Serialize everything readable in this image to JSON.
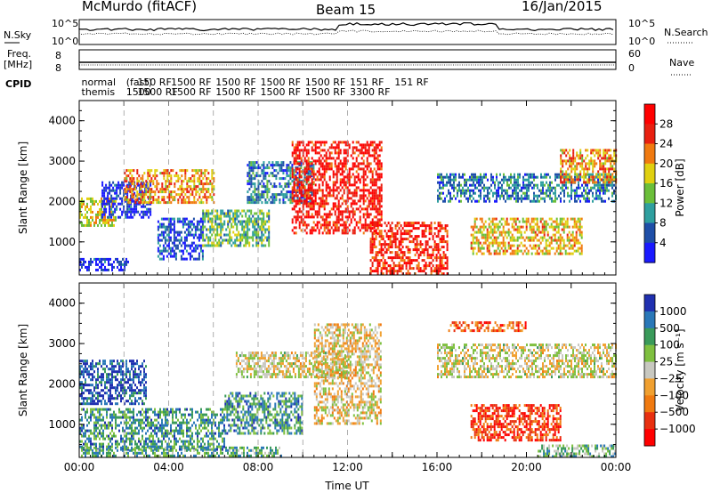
{
  "header": {
    "station": "McMurdo (fitACF)",
    "beam": "Beam 15",
    "date": "16/Jan/2015"
  },
  "side_labels": {
    "nsky": "N.Sky",
    "nsky_top": "10^5",
    "nsky_bottom": "10^0",
    "freq": "Freq.",
    "freq_unit": "[MHz]",
    "freq_top": "8",
    "freq_bottom": "8",
    "cpid": "CPID",
    "nsearch": "N.Search",
    "nsearch_top": "10^5",
    "nsearch_bottom": "10^0",
    "nave": "Nave",
    "nave_top": "60",
    "nave_bottom": "0"
  },
  "cpid_labels": [
    {
      "t": 0.1,
      "row1": "normal",
      "row2": "themis"
    },
    {
      "t": 2.1,
      "row1": "(fast)",
      "row2": "1500"
    },
    {
      "t": 2.6,
      "row1": "150 RF",
      "row2": "1500 RF"
    },
    {
      "t": 4.1,
      "row1": "1500 RF",
      "row2": "1500 RF"
    },
    {
      "t": 6.1,
      "row1": "1500 RF",
      "row2": "1500 RF"
    },
    {
      "t": 8.1,
      "row1": "1500 RF",
      "row2": "1500 RF"
    },
    {
      "t": 10.1,
      "row1": "1500 RF",
      "row2": "1500 RF"
    },
    {
      "t": 12.1,
      "row1": "151 RF",
      "row2": "3300 RF"
    },
    {
      "t": 14.1,
      "row1": "151 RF",
      "row2": ""
    }
  ],
  "chart_data": [
    {
      "type": "heatmap",
      "name": "power",
      "ylabel": "Slant Range [km]",
      "xlim": [
        0,
        24
      ],
      "ylim": [
        180,
        4500
      ],
      "yticks": [
        "1000",
        "2000",
        "3000",
        "4000"
      ],
      "yticks_values": [
        1000,
        2000,
        3000,
        4000
      ],
      "colorbar_label": "Power [dB]",
      "colorbar_ticks": [
        "4",
        "8",
        "12",
        "16",
        "20",
        "24",
        "28"
      ],
      "colorbar_colors": [
        "#1a1aff",
        "#1f4fa8",
        "#2f9f9f",
        "#6bbf3a",
        "#e0d010",
        "#f07a10",
        "#e82010",
        "#ff0000"
      ],
      "regions": [
        {
          "t0": 0.0,
          "t1": 2.2,
          "r0": 300,
          "r1": 600,
          "level": 0.9
        },
        {
          "t0": 0.0,
          "t1": 1.6,
          "r0": 1400,
          "r1": 2100,
          "level": 0.45
        },
        {
          "t0": 1.0,
          "t1": 3.2,
          "r0": 1600,
          "r1": 2500,
          "level": 0.9
        },
        {
          "t0": 3.5,
          "t1": 5.5,
          "r0": 600,
          "r1": 1600,
          "level": 0.85
        },
        {
          "t0": 5.5,
          "t1": 8.5,
          "r0": 900,
          "r1": 1800,
          "level": 0.6
        },
        {
          "t0": 7.5,
          "t1": 10.5,
          "r0": 2000,
          "r1": 3000,
          "level": 0.75
        },
        {
          "t0": 2.0,
          "t1": 6.0,
          "r0": 2000,
          "r1": 2800,
          "level": 0.35
        },
        {
          "t0": 9.5,
          "t1": 13.5,
          "r0": 1200,
          "r1": 3500,
          "level": 0.12
        },
        {
          "t0": 13.0,
          "t1": 16.5,
          "r0": 200,
          "r1": 1500,
          "level": 0.15
        },
        {
          "t0": 16.0,
          "t1": 24.0,
          "r0": 2000,
          "r1": 2700,
          "level": 0.75
        },
        {
          "t0": 17.5,
          "t1": 22.5,
          "r0": 700,
          "r1": 1600,
          "level": 0.4
        },
        {
          "t0": 21.5,
          "t1": 24.0,
          "r0": 2500,
          "r1": 3300,
          "level": 0.35
        }
      ]
    },
    {
      "type": "heatmap",
      "name": "velocity",
      "ylabel": "Slant Range [km]",
      "xlabel": "Time UT",
      "xlim": [
        0,
        24
      ],
      "ylim": [
        180,
        4500
      ],
      "xticks": [
        "00:00",
        "04:00",
        "08:00",
        "12:00",
        "16:00",
        "20:00",
        "00:00"
      ],
      "xticks_values": [
        0,
        4,
        8,
        12,
        16,
        20,
        24
      ],
      "yticks": [
        "1000",
        "2000",
        "3000",
        "4000"
      ],
      "yticks_values": [
        1000,
        2000,
        3000,
        4000
      ],
      "colorbar_label": "Velocity [m s⁻¹]",
      "colorbar_ticks": [
        "1000",
        "500",
        "100",
        "25",
        "−25",
        "−100",
        "−500",
        "−1000"
      ],
      "colorbar_colors": [
        "#2030b0",
        "#2a78b8",
        "#3a9a5a",
        "#7fc040",
        "#c8c8c0",
        "#f0a030",
        "#f07a10",
        "#e83010",
        "#ff0000"
      ],
      "regions": [
        {
          "t0": 0.0,
          "t1": 3.0,
          "r0": 1500,
          "r1": 2600,
          "level": 0.1
        },
        {
          "t0": 0.0,
          "t1": 6.5,
          "r0": 400,
          "r1": 1400,
          "level": 0.25
        },
        {
          "t0": 6.5,
          "t1": 10.0,
          "r0": 800,
          "r1": 1800,
          "level": 0.25
        },
        {
          "t0": 0.0,
          "t1": 9.0,
          "r0": 200,
          "r1": 450,
          "level": 0.3
        },
        {
          "t0": 7.0,
          "t1": 12.0,
          "r0": 2200,
          "r1": 2800,
          "level": 0.5
        },
        {
          "t0": 10.5,
          "t1": 13.5,
          "r0": 1000,
          "r1": 3500,
          "level": 0.55
        },
        {
          "t0": 16.0,
          "t1": 24.0,
          "r0": 2200,
          "r1": 3000,
          "level": 0.5
        },
        {
          "t0": 17.5,
          "t1": 21.5,
          "r0": 600,
          "r1": 1500,
          "level": 0.85
        },
        {
          "t0": 16.5,
          "t1": 20.0,
          "r0": 3300,
          "r1": 3550,
          "level": 0.78
        },
        {
          "t0": 20.5,
          "t1": 24.0,
          "r0": 200,
          "r1": 500,
          "level": 0.35
        }
      ]
    }
  ]
}
